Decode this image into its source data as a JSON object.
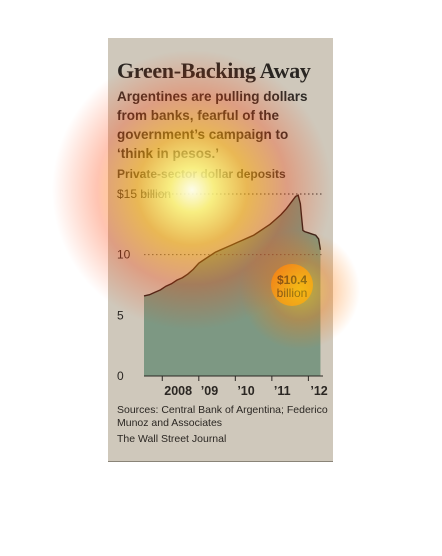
{
  "title": "Green-Backing Away",
  "subtitle": "Argentines are pulling dollars from banks, fearful of the government’s campaign to ‘think in pesos.’",
  "chart_label": "Private-sector dollar deposits",
  "source": "Sources: Central Bank of Argentina; Federico Munoz and Associates",
  "publisher": "The Wall Street Journal",
  "callout": {
    "value": "$10.4",
    "unit": "billion"
  },
  "colors": {
    "background": "#cfc8bb",
    "area_fill": "#6f8f79",
    "line": "#2a1e1a",
    "callout": "#e7a52c"
  },
  "chart_data": {
    "type": "area",
    "title": "Private-sector dollar deposits",
    "ylim": [
      0,
      15
    ],
    "y_ticks": [
      {
        "value": 15,
        "label": "$15 billion"
      },
      {
        "value": 10,
        "label": "10"
      },
      {
        "value": 5,
        "label": "5"
      },
      {
        "value": 0,
        "label": "0"
      }
    ],
    "x_ticks": [
      {
        "value": 2008.0,
        "label": "2008"
      },
      {
        "value": 2009.0,
        "label": "’09"
      },
      {
        "value": 2010.0,
        "label": "’10"
      },
      {
        "value": 2011.0,
        "label": "’11"
      },
      {
        "value": 2012.0,
        "label": "’12"
      }
    ],
    "xlim": [
      2007.5,
      2012.4
    ],
    "series": [
      {
        "x": [
          2007.5,
          2007.65,
          2007.8,
          2007.95,
          2008.1,
          2008.25,
          2008.4,
          2008.55,
          2008.7,
          2008.85,
          2009.0,
          2009.15,
          2009.3,
          2009.45,
          2009.6,
          2009.75,
          2009.9,
          2010.05,
          2010.2,
          2010.35,
          2010.5,
          2010.65,
          2010.8,
          2010.95,
          2011.1,
          2011.25,
          2011.4,
          2011.55,
          2011.65,
          2011.72,
          2011.78,
          2011.82,
          2011.85,
          2011.9,
          2012.0,
          2012.1,
          2012.2,
          2012.28,
          2012.33
        ],
        "y": [
          6.6,
          6.7,
          6.9,
          7.1,
          7.4,
          7.6,
          7.9,
          8.1,
          8.4,
          8.8,
          9.3,
          9.6,
          9.9,
          10.2,
          10.4,
          10.6,
          10.8,
          11.0,
          11.2,
          11.4,
          11.6,
          11.9,
          12.2,
          12.5,
          12.9,
          13.3,
          13.8,
          14.4,
          14.8,
          14.9,
          14.2,
          12.9,
          12.0,
          11.9,
          11.8,
          11.7,
          11.6,
          11.3,
          10.4
        ]
      }
    ],
    "grid": false,
    "dotted_reference_line": 15
  }
}
